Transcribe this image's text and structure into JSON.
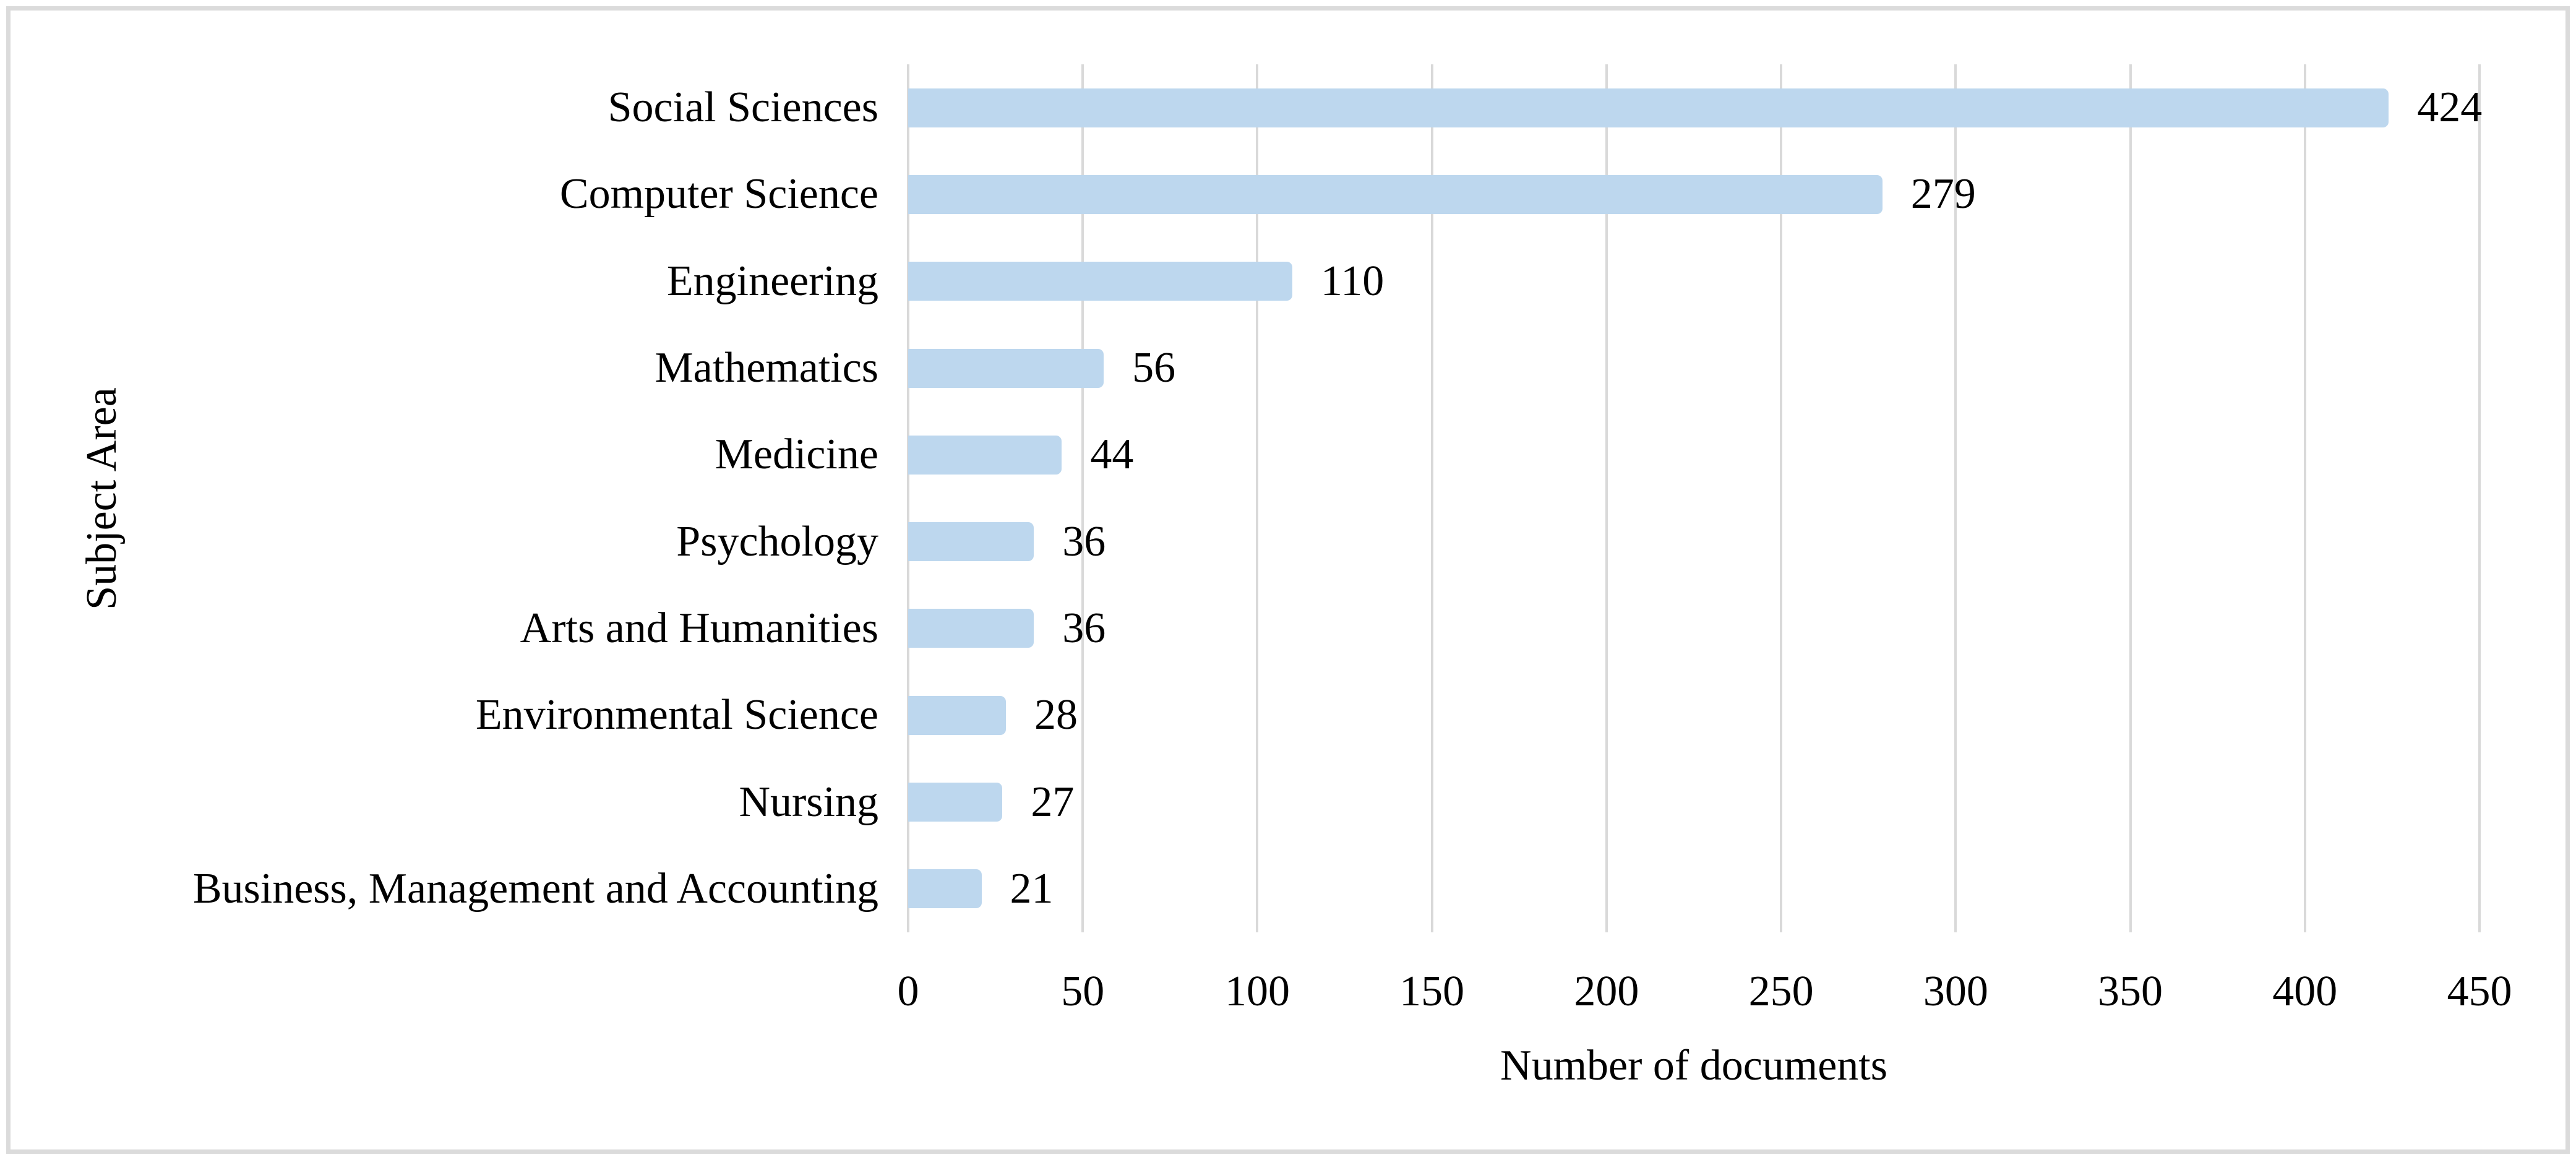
{
  "chart_data": {
    "type": "bar",
    "orientation": "horizontal",
    "title": "",
    "xlabel": "Number of documents",
    "ylabel": "Subject Area",
    "categories": [
      "Social Sciences",
      "Computer Science",
      "Engineering",
      "Mathematics",
      "Medicine",
      "Psychology",
      "Arts and Humanities",
      "Environmental Science",
      "Nursing",
      "Business, Management and Accounting"
    ],
    "values": [
      424,
      279,
      110,
      56,
      44,
      36,
      36,
      28,
      27,
      21
    ],
    "data_labels": [
      424,
      279,
      110,
      56,
      44,
      36,
      36,
      28,
      27,
      21
    ],
    "xlim": [
      0,
      450
    ],
    "xticks": [
      0,
      50,
      100,
      150,
      200,
      250,
      300,
      350,
      400,
      450
    ],
    "grid": "vertical",
    "legend": "none",
    "colors": {
      "bar_fill": "#BDD7EE",
      "gridline": "#D9D9D9",
      "text": "#000000",
      "frame_border": "#DBDBDB",
      "background": "#FFFFFF"
    }
  }
}
